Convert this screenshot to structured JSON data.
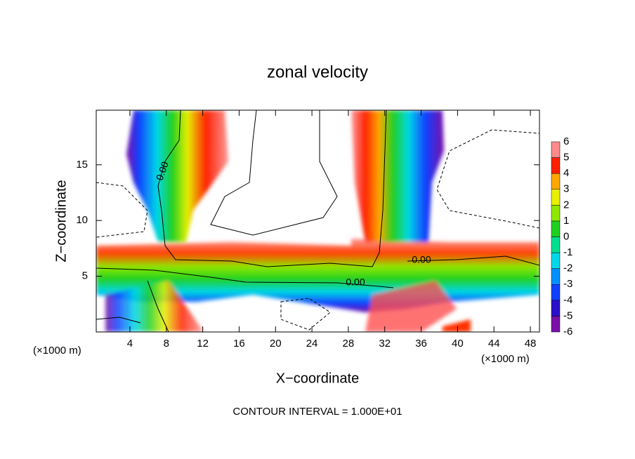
{
  "chart_data": {
    "type": "contour",
    "title": "zonal velocity",
    "xlabel": "X−coordinate",
    "ylabel": "Z−coordinate",
    "x_unit_labels": [
      "(×1000 m)",
      "(×1000 m)"
    ],
    "footer": "CONTOUR INTERVAL = 1.000E+01",
    "contour_labels": [
      "0.00",
      "0.00",
      "0.00"
    ],
    "xlim": [
      0.3,
      49
    ],
    "xticks": [
      4,
      8,
      12,
      16,
      20,
      24,
      28,
      32,
      36,
      40,
      44,
      48
    ],
    "ylim": [
      0,
      19.9
    ],
    "yticks": [
      5,
      10,
      15
    ],
    "colorbar": {
      "levels": [
        -6,
        -5,
        -4,
        -3,
        -2,
        -1,
        0,
        1,
        2,
        3,
        4,
        5,
        6
      ],
      "colors": [
        "#7a10a8",
        "#2a10c8",
        "#1040ff",
        "#0090ff",
        "#00d8e8",
        "#00e090",
        "#20d020",
        "#90e800",
        "#e8f000",
        "#ffa800",
        "#ff2000",
        "#ff8a8a"
      ]
    }
  }
}
